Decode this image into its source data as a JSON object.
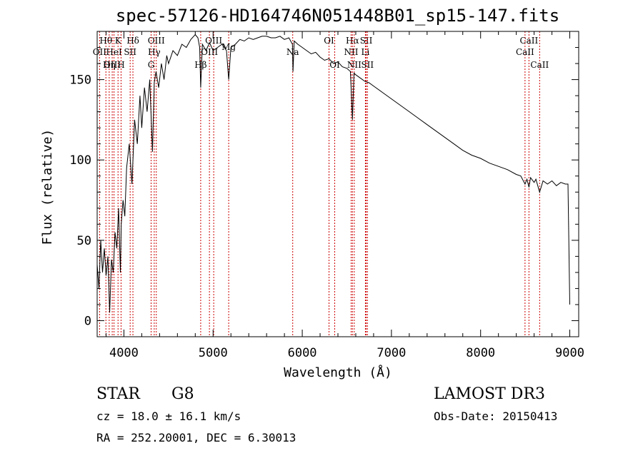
{
  "chart_data": {
    "type": "line",
    "title": "spec-57126-HD164746N051448B01_sp15-147.fits",
    "xlabel": "Wavelength (Å)",
    "ylabel": "Flux (relative)",
    "xlim": [
      3700,
      9100
    ],
    "ylim": [
      -10,
      180
    ],
    "xticks": [
      4000,
      5000,
      6000,
      7000,
      8000,
      9000
    ],
    "yticks": [
      0,
      50,
      100,
      150
    ],
    "grid": false,
    "series": [
      {
        "name": "spectrum",
        "x": [
          3700,
          3720,
          3740,
          3760,
          3780,
          3800,
          3820,
          3840,
          3860,
          3880,
          3900,
          3920,
          3940,
          3960,
          3970,
          3990,
          4010,
          4030,
          4060,
          4090,
          4101,
          4120,
          4150,
          4180,
          4200,
          4230,
          4260,
          4290,
          4320,
          4340,
          4360,
          4390,
          4420,
          4450,
          4480,
          4500,
          4550,
          4600,
          4650,
          4700,
          4750,
          4800,
          4830,
          4850,
          4861,
          4880,
          4920,
          4960,
          5000,
          5050,
          5100,
          5150,
          5175,
          5200,
          5250,
          5300,
          5350,
          5400,
          5450,
          5500,
          5550,
          5600,
          5650,
          5700,
          5750,
          5800,
          5850,
          5890,
          5896,
          5910,
          5950,
          6000,
          6050,
          6100,
          6150,
          6200,
          6250,
          6300,
          6350,
          6400,
          6450,
          6500,
          6540,
          6563,
          6580,
          6600,
          6650,
          6700,
          6750,
          6800,
          6900,
          7000,
          7100,
          7200,
          7300,
          7400,
          7500,
          7600,
          7700,
          7800,
          7900,
          8000,
          8100,
          8200,
          8300,
          8400,
          8450,
          8498,
          8520,
          8542,
          8560,
          8600,
          8620,
          8662,
          8700,
          8750,
          8800,
          8850,
          8900,
          8950,
          8980,
          9000
        ],
        "values": [
          35,
          20,
          50,
          30,
          45,
          28,
          40,
          5,
          38,
          30,
          55,
          45,
          70,
          30,
          60,
          75,
          65,
          95,
          110,
          85,
          100,
          125,
          110,
          140,
          120,
          145,
          130,
          150,
          105,
          148,
          155,
          145,
          160,
          150,
          165,
          160,
          168,
          165,
          172,
          170,
          175,
          178,
          176,
          170,
          145,
          172,
          168,
          173,
          168,
          170,
          172,
          168,
          150,
          170,
          172,
          175,
          174,
          176,
          175,
          176,
          177,
          177,
          176,
          176,
          177,
          175,
          176,
          172,
          155,
          174,
          172,
          170,
          168,
          166,
          167,
          164,
          162,
          163,
          160,
          161,
          158,
          157,
          155,
          125,
          154,
          153,
          151,
          149,
          148,
          146,
          142,
          138,
          134,
          130,
          126,
          122,
          118,
          114,
          110,
          106,
          103,
          101,
          98,
          96,
          94,
          91,
          90,
          85,
          88,
          83,
          89,
          86,
          88,
          80,
          87,
          85,
          87,
          84,
          86,
          85,
          85,
          10
        ]
      }
    ],
    "line_markers": [
      {
        "label": "Hθ",
        "wavelength": 3798,
        "row": 1
      },
      {
        "label": "OII",
        "wavelength": 3727,
        "row": 2
      },
      {
        "label": "OIII",
        "wavelength": 3869,
        "row": 3
      },
      {
        "label": "K",
        "wavelength": 3934,
        "row": 1
      },
      {
        "label": "HeI",
        "wavelength": 3889,
        "row": 2
      },
      {
        "label": "Hη",
        "wavelength": 3835,
        "row": 3
      },
      {
        "label": "Hδ",
        "wavelength": 4101,
        "row": 1
      },
      {
        "label": "SII",
        "wavelength": 4070,
        "row": 2
      },
      {
        "label": "H",
        "wavelength": 3968,
        "row": 3
      },
      {
        "label": "OIII",
        "wavelength": 4363,
        "row": 1
      },
      {
        "label": "Hγ",
        "wavelength": 4340,
        "row": 2
      },
      {
        "label": "G",
        "wavelength": 4305,
        "row": 3
      },
      {
        "label": "OIII",
        "wavelength": 5007,
        "row": 1
      },
      {
        "label": "OIII",
        "wavelength": 4959,
        "row": 2
      },
      {
        "label": "Hβ",
        "wavelength": 4861,
        "row": 3
      },
      {
        "label": "Mg",
        "wavelength": 5175,
        "row": 0
      },
      {
        "label": "Na",
        "wavelength": 5893,
        "row": 2
      },
      {
        "label": "OI",
        "wavelength": 6300,
        "row": 1
      },
      {
        "label": "OI",
        "wavelength": 6364,
        "row": 3
      },
      {
        "label": "Hα",
        "wavelength": 6563,
        "row": 1
      },
      {
        "label": "NII",
        "wavelength": 6548,
        "row": 2
      },
      {
        "label": "NII",
        "wavelength": 6583,
        "row": 3
      },
      {
        "label": "SII",
        "wavelength": 6717,
        "row": 1
      },
      {
        "label": "Li",
        "wavelength": 6708,
        "row": 2
      },
      {
        "label": "SII",
        "wavelength": 6731,
        "row": 3
      },
      {
        "label": "CaII",
        "wavelength": 8542,
        "row": 1
      },
      {
        "label": "CaII",
        "wavelength": 8498,
        "row": 2
      },
      {
        "label": "CaII",
        "wavelength": 8662,
        "row": 3
      }
    ]
  },
  "info": {
    "object_class": "STAR",
    "subclass": "G8",
    "survey": "LAMOST DR3",
    "redshift": "cz = 18.0 ± 16.1 km/s",
    "obs_date": "Obs-Date: 20150413",
    "coords": "RA = 252.20001, DEC =   6.30013"
  },
  "colors": {
    "line_marker": "#cc0000",
    "spectrum": "#000000"
  }
}
